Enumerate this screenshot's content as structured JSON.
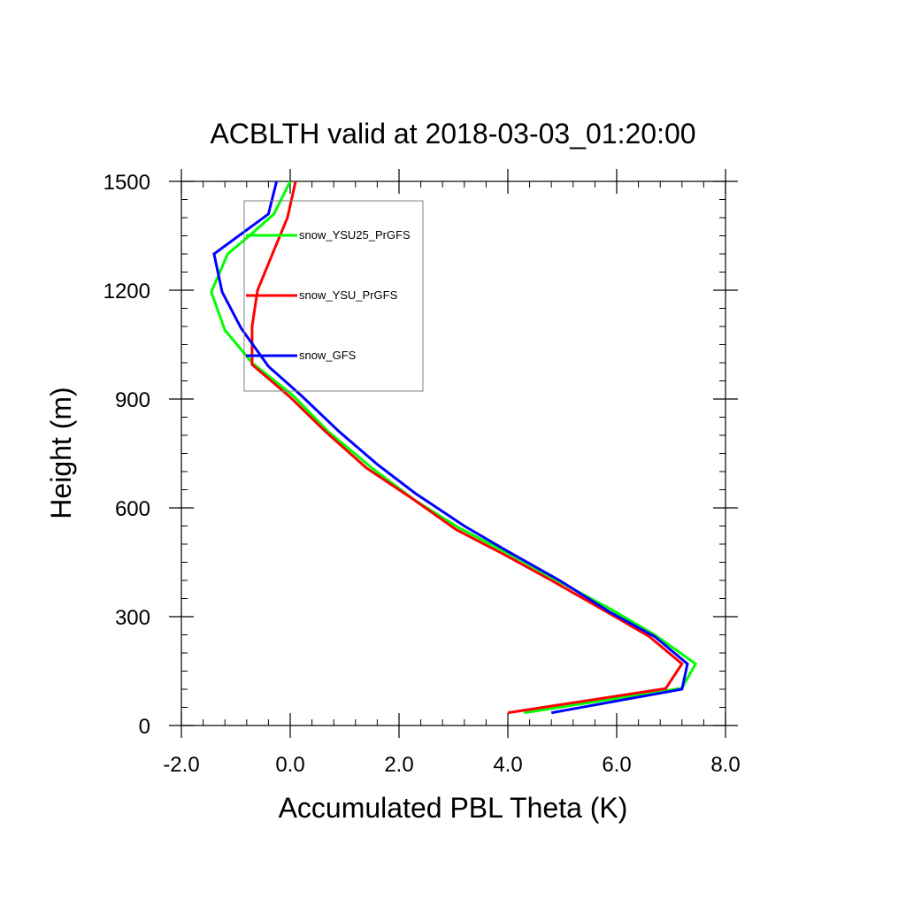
{
  "chart_data": {
    "type": "line",
    "title": "ACBLTH valid at 2018-03-03_01:20:00",
    "xlabel": "Accumulated PBL Theta (K)",
    "ylabel": "Height (m)",
    "xlim": [
      -2.0,
      8.0
    ],
    "ylim": [
      0,
      1500
    ],
    "x_ticks": [
      -2.0,
      0.0,
      2.0,
      4.0,
      6.0,
      8.0
    ],
    "x_tick_labels": [
      "-2.0",
      "0.0",
      "2.0",
      "4.0",
      "6.0",
      "8.0"
    ],
    "y_ticks": [
      0,
      300,
      600,
      900,
      1200,
      1500
    ],
    "y_tick_labels": [
      "0",
      "300",
      "600",
      "900",
      "1200",
      "1500"
    ],
    "grid": false,
    "legend_position": "top-left",
    "series": [
      {
        "name": "snow_YSU25_PrGFS",
        "color": "#00ff00",
        "points": [
          [
            4.3,
            35
          ],
          [
            7.2,
            103
          ],
          [
            7.45,
            170
          ],
          [
            6.7,
            250
          ],
          [
            5.9,
            320
          ],
          [
            4.9,
            400
          ],
          [
            4.0,
            475
          ],
          [
            3.1,
            545
          ],
          [
            2.3,
            620
          ],
          [
            1.5,
            710
          ],
          [
            0.7,
            810
          ],
          [
            0.05,
            910
          ],
          [
            -0.7,
            1000
          ],
          [
            -1.2,
            1090
          ],
          [
            -1.45,
            1195
          ],
          [
            -1.15,
            1300
          ],
          [
            -0.75,
            1350
          ],
          [
            -0.3,
            1410
          ],
          [
            0.0,
            1500
          ]
        ]
      },
      {
        "name": "snow_YSU_PrGFS",
        "color": "#ff0000",
        "points": [
          [
            4.0,
            35
          ],
          [
            6.9,
            102
          ],
          [
            7.2,
            170
          ],
          [
            6.6,
            245
          ],
          [
            5.8,
            315
          ],
          [
            4.8,
            400
          ],
          [
            3.95,
            470
          ],
          [
            3.05,
            540
          ],
          [
            2.2,
            630
          ],
          [
            1.4,
            710
          ],
          [
            0.65,
            810
          ],
          [
            0.0,
            905
          ],
          [
            -0.7,
            995
          ],
          [
            -0.7,
            1100
          ],
          [
            -0.6,
            1200
          ],
          [
            -0.3,
            1310
          ],
          [
            -0.05,
            1400
          ],
          [
            0.1,
            1500
          ]
        ]
      },
      {
        "name": "snow_GFS",
        "color": "#0000ff",
        "points": [
          [
            4.8,
            35
          ],
          [
            7.2,
            100
          ],
          [
            7.3,
            170
          ],
          [
            6.7,
            245
          ],
          [
            5.85,
            315
          ],
          [
            4.95,
            400
          ],
          [
            4.0,
            480
          ],
          [
            3.2,
            550
          ],
          [
            2.3,
            640
          ],
          [
            1.6,
            720
          ],
          [
            0.9,
            810
          ],
          [
            0.2,
            910
          ],
          [
            -0.4,
            990
          ],
          [
            -0.9,
            1095
          ],
          [
            -1.25,
            1195
          ],
          [
            -1.4,
            1300
          ],
          [
            -0.4,
            1410
          ],
          [
            -0.25,
            1500
          ]
        ]
      }
    ]
  }
}
